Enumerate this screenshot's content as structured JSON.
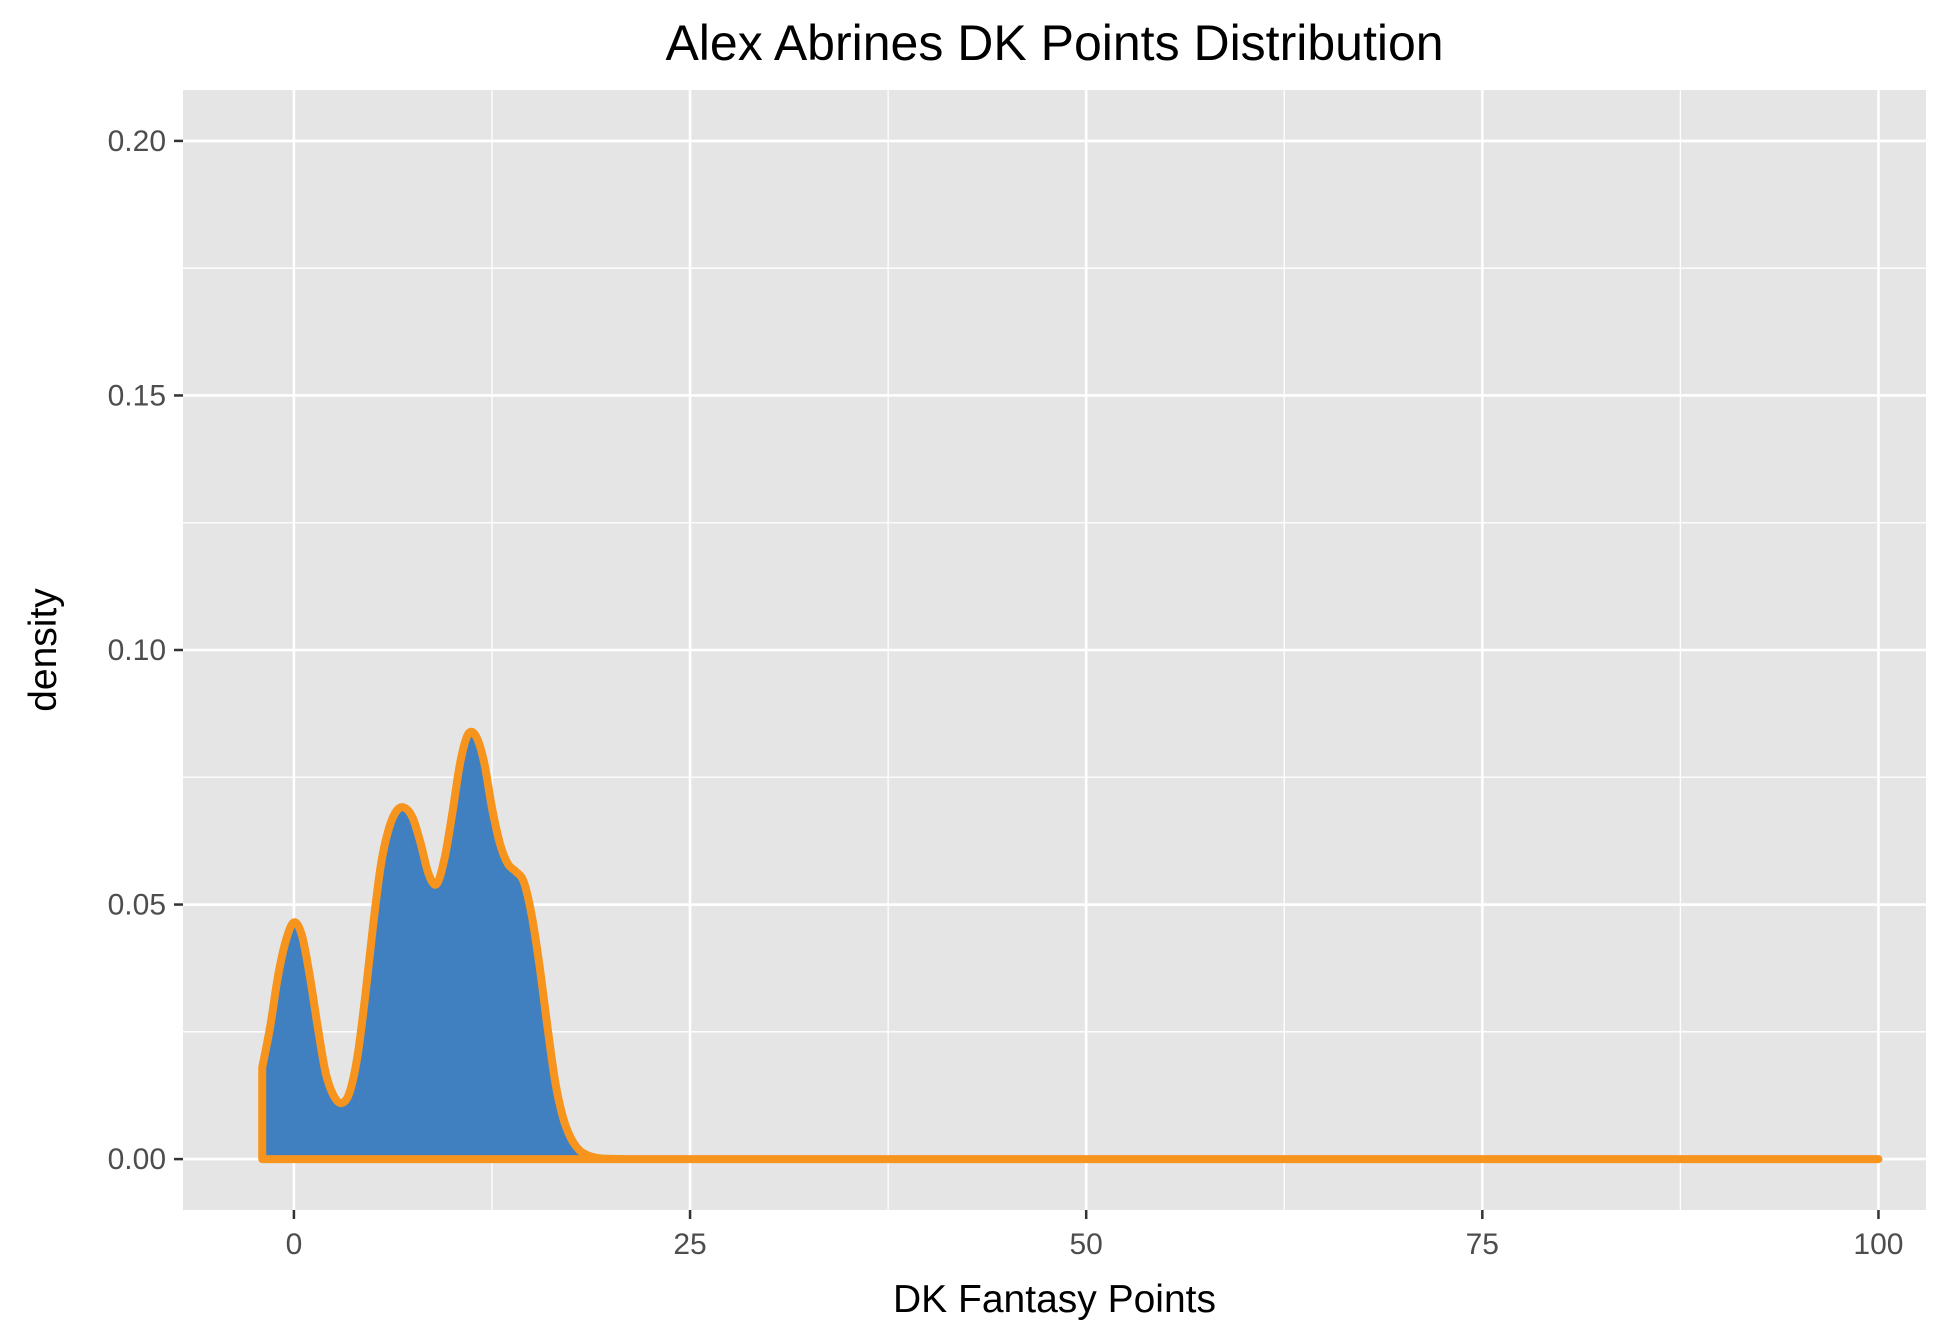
{
  "chart_data": {
    "type": "area",
    "title": "Alex Abrines DK Points Distribution",
    "xlabel": "DK Fantasy Points",
    "ylabel": "density",
    "xlim": [
      -7,
      103
    ],
    "ylim": [
      -0.01,
      0.21
    ],
    "x_ticks": [
      0,
      25,
      50,
      75,
      100
    ],
    "x_tick_labels": [
      "0",
      "25",
      "50",
      "75",
      "100"
    ],
    "y_ticks": [
      0,
      0.05,
      0.1,
      0.15,
      0.2
    ],
    "y_tick_labels": [
      "0.00",
      "0.05",
      "0.10",
      "0.15",
      "0.20"
    ],
    "grid": true,
    "legend": "none",
    "colors": {
      "panel": "#e5e5e5",
      "grid": "#ffffff",
      "fill": "#4080c1",
      "line": "#f7941d"
    },
    "series": [
      {
        "x": [
          -2,
          -1.5,
          -1,
          -0.5,
          0,
          0.5,
          1,
          1.5,
          2,
          2.5,
          3,
          3.5,
          4,
          4.5,
          5,
          5.5,
          6,
          6.5,
          7,
          7.5,
          8,
          8.5,
          9,
          9.5,
          10,
          10.5,
          11,
          11.5,
          12,
          12.5,
          13,
          13.5,
          14,
          14.5,
          15,
          15.5,
          16,
          16.5,
          17,
          17.5,
          18,
          18.5,
          19,
          19.5,
          20,
          21,
          22,
          25,
          30,
          40,
          50,
          60,
          70,
          80,
          90,
          100
        ],
        "y": [
          0.018,
          0.026,
          0.036,
          0.043,
          0.0465,
          0.044,
          0.036,
          0.026,
          0.017,
          0.0125,
          0.011,
          0.013,
          0.02,
          0.032,
          0.046,
          0.058,
          0.065,
          0.0685,
          0.069,
          0.067,
          0.062,
          0.056,
          0.054,
          0.059,
          0.068,
          0.078,
          0.0835,
          0.083,
          0.078,
          0.069,
          0.062,
          0.058,
          0.0565,
          0.0545,
          0.048,
          0.038,
          0.026,
          0.015,
          0.008,
          0.004,
          0.0018,
          0.0008,
          0.0003,
          0.0001,
          5e-05,
          0,
          0,
          0,
          0,
          0,
          0,
          0,
          0,
          0,
          0,
          0
        ]
      }
    ]
  }
}
